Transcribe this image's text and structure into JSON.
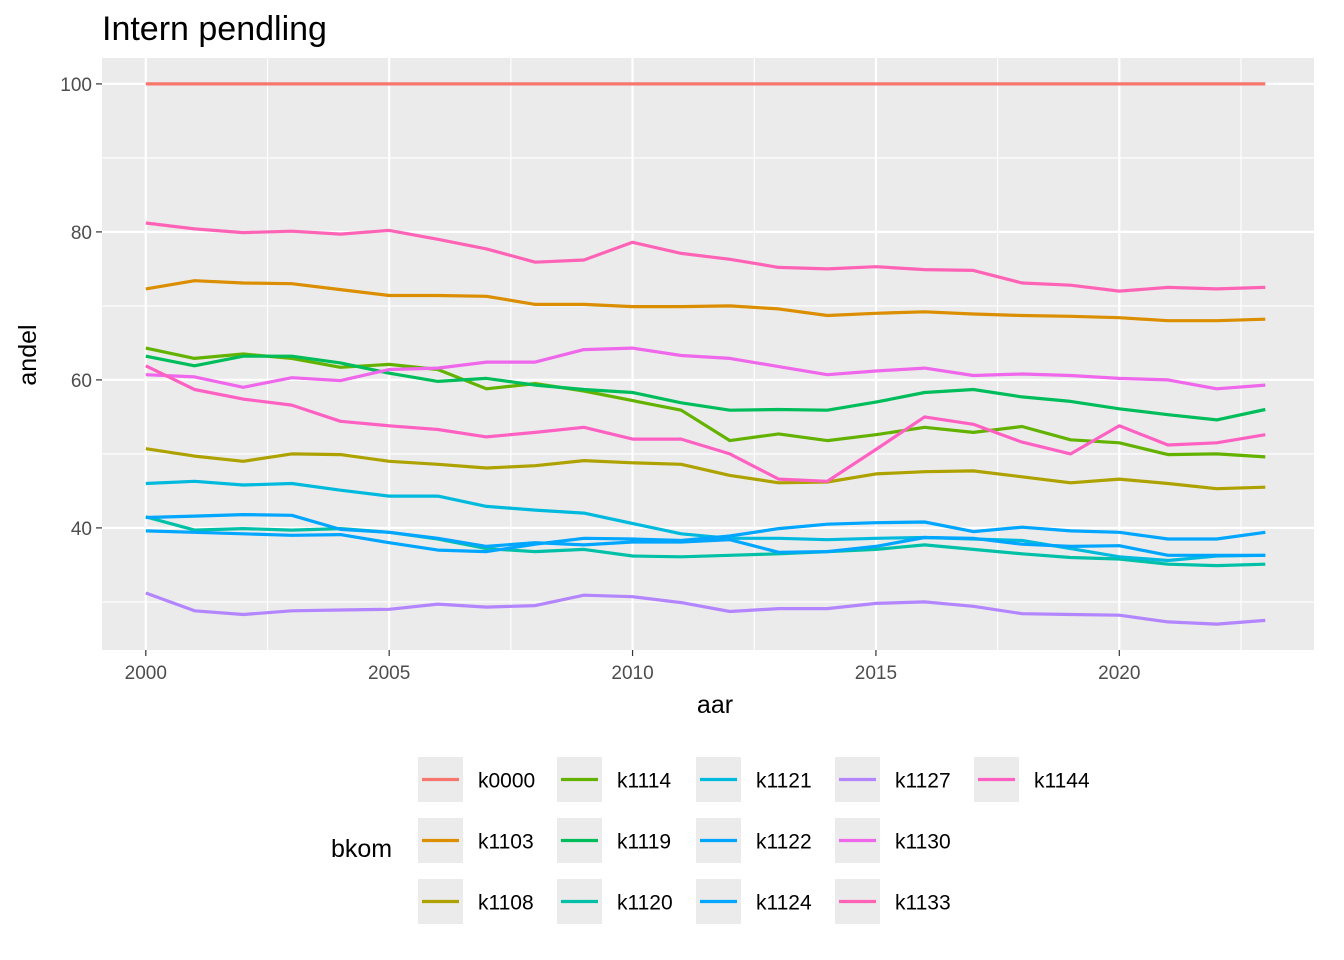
{
  "chart_data": {
    "type": "line",
    "title": "Intern pendling",
    "xlabel": "aar",
    "ylabel": "andel",
    "xlim": [
      1999.1,
      2024.0
    ],
    "ylim": [
      23.5,
      103.5
    ],
    "x_ticks": [
      2000,
      2005,
      2010,
      2015,
      2020
    ],
    "x_minor_ticks": [
      2002.5,
      2007.5,
      2012.5,
      2017.5,
      2022.5
    ],
    "y_ticks": [
      40,
      60,
      80,
      100
    ],
    "y_minor_ticks": [
      30,
      50,
      70,
      90
    ],
    "grid": true,
    "legend_title": "bkom",
    "legend_position": "bottom",
    "x": [
      2000,
      2001,
      2002,
      2003,
      2004,
      2005,
      2006,
      2007,
      2008,
      2009,
      2010,
      2011,
      2012,
      2013,
      2014,
      2015,
      2016,
      2017,
      2018,
      2019,
      2020,
      2021,
      2022,
      2023
    ],
    "series": [
      {
        "name": "k0000",
        "color": "#F8766D",
        "values": [
          100,
          100,
          100,
          100,
          100,
          100,
          100,
          100,
          100,
          100,
          100,
          100,
          100,
          100,
          100,
          100,
          100,
          100,
          100,
          100,
          100,
          100,
          100,
          100
        ]
      },
      {
        "name": "k1103",
        "color": "#DB8E00",
        "values": [
          72.3,
          73.4,
          73.1,
          73.0,
          72.2,
          71.4,
          71.4,
          71.3,
          70.2,
          70.2,
          69.9,
          69.9,
          70.0,
          69.6,
          68.7,
          69.0,
          69.2,
          68.9,
          68.7,
          68.6,
          68.4,
          68.0,
          68.0,
          68.2
        ]
      },
      {
        "name": "k1108",
        "color": "#AEA200",
        "values": [
          50.7,
          49.7,
          49.0,
          50.0,
          49.9,
          49.0,
          48.6,
          48.1,
          48.4,
          49.1,
          48.8,
          48.6,
          47.1,
          46.1,
          46.2,
          47.3,
          47.6,
          47.7,
          46.9,
          46.1,
          46.6,
          46.0,
          45.3,
          45.5
        ]
      },
      {
        "name": "k1114",
        "color": "#64B200",
        "values": [
          64.3,
          62.9,
          63.5,
          62.9,
          61.7,
          62.1,
          61.4,
          58.8,
          59.5,
          58.5,
          57.2,
          55.9,
          51.8,
          52.7,
          51.8,
          52.6,
          53.6,
          52.9,
          53.7,
          51.9,
          51.5,
          49.9,
          50.0,
          49.6
        ]
      },
      {
        "name": "k1119",
        "color": "#00BD5C",
        "values": [
          63.2,
          61.9,
          63.2,
          63.2,
          62.3,
          60.9,
          59.8,
          60.2,
          59.3,
          58.7,
          58.3,
          56.9,
          55.9,
          56.0,
          55.9,
          57.0,
          58.3,
          58.7,
          57.7,
          57.1,
          56.1,
          55.3,
          54.6,
          56.0
        ]
      },
      {
        "name": "k1120",
        "color": "#00C1A7",
        "values": [
          41.5,
          39.7,
          39.9,
          39.7,
          39.9,
          39.4,
          38.5,
          37.2,
          36.8,
          37.1,
          36.2,
          36.1,
          36.3,
          36.5,
          36.8,
          37.1,
          37.7,
          37.1,
          36.5,
          36.0,
          35.8,
          35.1,
          34.9,
          35.1
        ]
      },
      {
        "name": "k1121",
        "color": "#00BADE",
        "values": [
          46.0,
          46.3,
          45.8,
          46.0,
          45.1,
          44.3,
          44.3,
          42.9,
          42.4,
          42.0,
          40.6,
          39.2,
          38.6,
          38.6,
          38.4,
          38.6,
          38.7,
          38.5,
          38.3,
          37.2,
          36.1,
          35.6,
          36.2,
          36.3
        ]
      },
      {
        "name": "k1122",
        "color": "#00A6FF",
        "values": [
          41.4,
          41.6,
          41.8,
          41.7,
          39.8,
          39.4,
          38.6,
          37.5,
          38.0,
          37.7,
          38.1,
          38.1,
          38.4,
          36.7,
          36.8,
          37.5,
          38.7,
          38.6,
          37.8,
          37.5,
          37.6,
          36.3,
          36.3,
          36.3
        ]
      },
      {
        "name": "k1124",
        "color": "#00A6FF",
        "values": [
          39.6,
          39.4,
          39.2,
          39.0,
          39.1,
          38.0,
          37.0,
          36.8,
          37.8,
          38.6,
          38.5,
          38.3,
          38.9,
          39.9,
          40.5,
          40.7,
          40.8,
          39.5,
          40.1,
          39.6,
          39.4,
          38.5,
          38.5,
          39.4
        ]
      },
      {
        "name": "k1127",
        "color": "#B385FF",
        "values": [
          31.2,
          28.8,
          28.3,
          28.8,
          28.9,
          29.0,
          29.7,
          29.3,
          29.5,
          30.9,
          30.7,
          29.9,
          28.7,
          29.1,
          29.1,
          29.8,
          30.0,
          29.4,
          28.4,
          28.3,
          28.2,
          27.3,
          27.0,
          27.5
        ]
      },
      {
        "name": "k1130",
        "color": "#EF67EB",
        "values": [
          60.7,
          60.4,
          59.0,
          60.3,
          59.9,
          61.4,
          61.6,
          62.4,
          62.4,
          64.1,
          64.3,
          63.3,
          62.9,
          61.8,
          60.7,
          61.2,
          61.6,
          60.6,
          60.8,
          60.6,
          60.2,
          60.0,
          58.8,
          59.3
        ]
      },
      {
        "name": "k1133",
        "color": "#FF63B6",
        "values": [
          81.2,
          80.4,
          79.9,
          80.1,
          79.7,
          80.2,
          79.0,
          77.7,
          75.9,
          76.2,
          78.6,
          77.1,
          76.3,
          75.2,
          75.0,
          75.3,
          74.9,
          74.8,
          73.1,
          72.8,
          72.0,
          72.5,
          72.3,
          72.5
        ]
      },
      {
        "name": "k1144",
        "color": "#FF61C3",
        "values": [
          61.9,
          58.7,
          57.4,
          56.6,
          54.4,
          53.8,
          53.3,
          52.3,
          52.9,
          53.6,
          52.0,
          52.0,
          50.0,
          46.6,
          46.3,
          50.6,
          55.0,
          54.0,
          51.6,
          50.0,
          53.8,
          51.2,
          51.5,
          52.6
        ]
      }
    ],
    "legend_layout": [
      [
        "k0000",
        "k1114",
        "k1121",
        "k1127",
        "k1144"
      ],
      [
        "k1103",
        "k1119",
        "k1122",
        "k1130"
      ],
      [
        "k1108",
        "k1120",
        "k1124",
        "k1133"
      ]
    ]
  }
}
